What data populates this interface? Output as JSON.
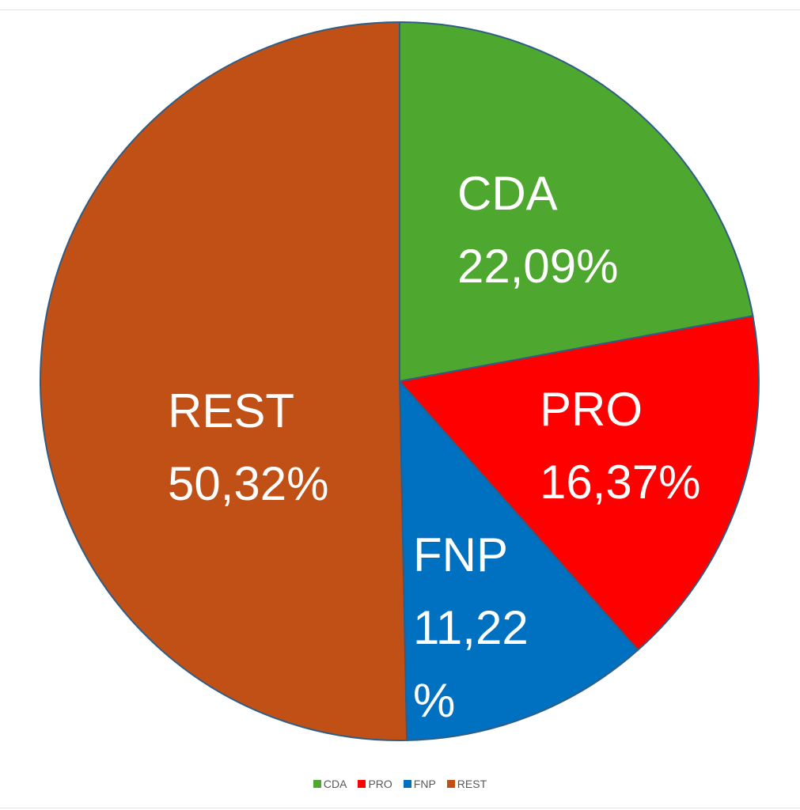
{
  "chart_data": {
    "type": "pie",
    "slices": [
      {
        "name": "CDA",
        "value": 22.09,
        "label_lines": [
          "CDA",
          "22,09%"
        ],
        "color": "#4ea72e"
      },
      {
        "name": "PRO",
        "value": 16.37,
        "label_lines": [
          "PRO",
          "16,37%"
        ],
        "color": "#ff0000"
      },
      {
        "name": "FNP",
        "value": 11.22,
        "label_lines": [
          "FNP",
          "11,22",
          "%"
        ],
        "color": "#0070c0"
      },
      {
        "name": "REST",
        "value": 50.32,
        "label_lines": [
          "REST",
          "50,32%"
        ],
        "color": "#c05016"
      }
    ],
    "legend": {
      "placement": "bottom",
      "entries": [
        "CDA",
        "PRO",
        "FNP",
        "REST"
      ]
    }
  }
}
